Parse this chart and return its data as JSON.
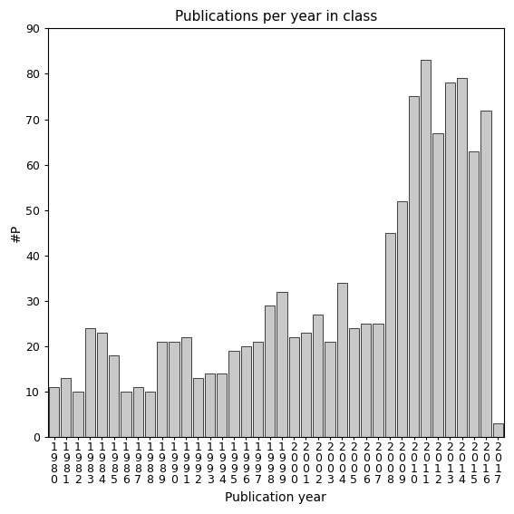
{
  "title": "Publications per year in class",
  "xlabel": "Publication year",
  "ylabel": "#P",
  "years": [
    "1980",
    "1981",
    "1982",
    "1983",
    "1984",
    "1985",
    "1986",
    "1987",
    "1988",
    "1989",
    "1990",
    "1991",
    "1992",
    "1993",
    "1994",
    "1995",
    "1996",
    "1997",
    "1998",
    "1999",
    "2000",
    "2001",
    "2002",
    "2003",
    "2004",
    "2005",
    "2006",
    "2007",
    "2008",
    "2009",
    "2010",
    "2011",
    "2012",
    "2013",
    "2014",
    "2015",
    "2016",
    "2017"
  ],
  "values": [
    11,
    13,
    10,
    24,
    23,
    18,
    10,
    11,
    10,
    21,
    21,
    22,
    13,
    14,
    14,
    19,
    20,
    21,
    29,
    32,
    22,
    23,
    27,
    21,
    34,
    24,
    25,
    25,
    45,
    52,
    75,
    83,
    67,
    78,
    79,
    63,
    72,
    3
  ],
  "bar_color": "#c8c8c8",
  "bar_edgecolor": "#000000",
  "ylim": [
    0,
    90
  ],
  "yticks": [
    0,
    10,
    20,
    30,
    40,
    50,
    60,
    70,
    80,
    90
  ],
  "background_color": "#ffffff",
  "title_fontsize": 11,
  "axis_label_fontsize": 10,
  "tick_fontsize": 9
}
